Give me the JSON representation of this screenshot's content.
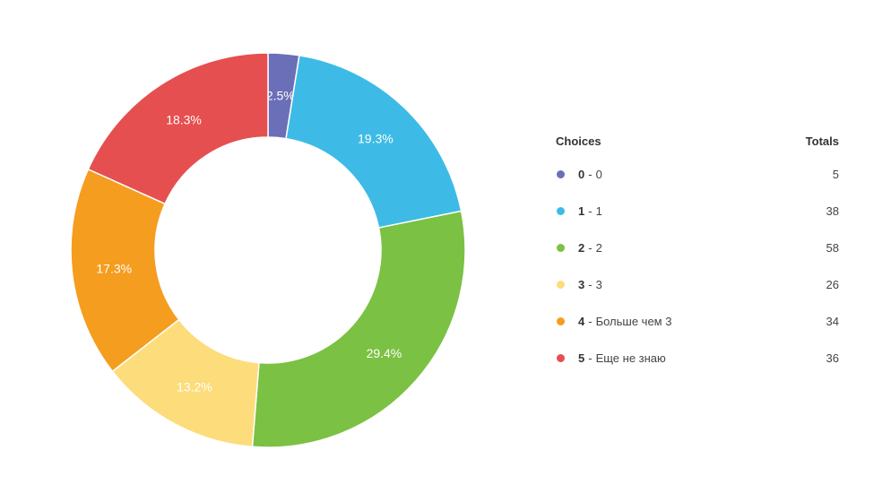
{
  "chart_data": {
    "type": "pie",
    "legend_placement": "right",
    "legend_header": {
      "choices": "Choices",
      "totals": "Totals"
    },
    "slices": [
      {
        "code": "0",
        "label": "0",
        "value": 5,
        "percent_label": "2.5%",
        "color": "#6b6fb7"
      },
      {
        "code": "1",
        "label": "1",
        "value": 38,
        "percent_label": "19.3%",
        "color": "#3dbbe6"
      },
      {
        "code": "2",
        "label": "2",
        "value": 58,
        "percent_label": "29.4%",
        "color": "#7bc143"
      },
      {
        "code": "3",
        "label": "3",
        "value": 26,
        "percent_label": "13.2%",
        "color": "#fddc7b"
      },
      {
        "code": "4",
        "label": "Больше чем 3",
        "value": 34,
        "percent_label": "17.3%",
        "color": "#f59d1f"
      },
      {
        "code": "5",
        "label": "Еще не знаю",
        "value": 36,
        "percent_label": "18.3%",
        "color": "#e64f4f"
      }
    ]
  }
}
